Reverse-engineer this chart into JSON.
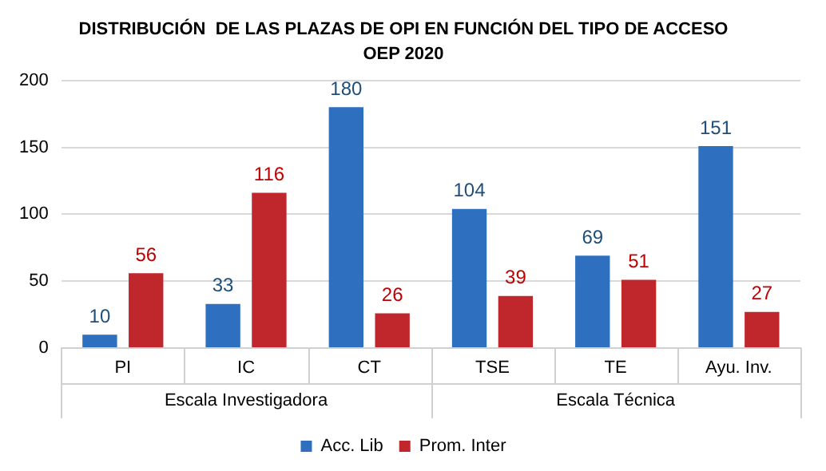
{
  "chart_data": {
    "type": "bar",
    "title": "DISTRIBUCIÓN  DE LAS PLAZAS DE OPI EN FUNCIÓN DEL TIPO DE ACCESO",
    "subtitle": "OEP 2020",
    "categories": [
      "PI",
      "IC",
      "CT",
      "TSE",
      "TE",
      "Ayu. Inv."
    ],
    "series": [
      {
        "name": "Acc. Lib",
        "color": "#2f6fbf",
        "values": [
          10,
          33,
          180,
          104,
          69,
          151
        ]
      },
      {
        "name": "Prom. Inter",
        "color": "#c0272d",
        "values": [
          56,
          116,
          26,
          39,
          51,
          27
        ]
      }
    ],
    "annotations": [
      "Escala Investigadora",
      "Escala Técnica"
    ],
    "ylim": [
      0,
      200
    ],
    "yticks": [
      0,
      50,
      100,
      150,
      200
    ],
    "grid": "y",
    "legend": "bottom",
    "data_labels": true
  }
}
